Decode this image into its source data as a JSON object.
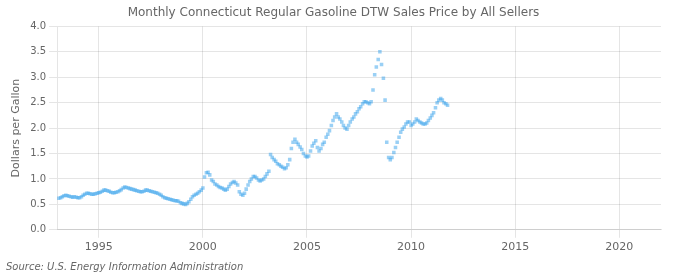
{
  "chart_data": {
    "type": "scatter",
    "title": "Monthly Connecticut Regular Gasoline DTW Sales Price by All Sellers",
    "ylabel": "Dollars per Gallon",
    "annotation": "Source: U.S. Energy Information Administration",
    "marker": "square",
    "grid": true,
    "xlim": [
      1993.0,
      2022.0
    ],
    "xticks": [
      1995,
      2000,
      2005,
      2010,
      2015,
      2020
    ],
    "ylim": [
      0.0,
      4.0
    ],
    "yticks": [
      {
        "value": 0,
        "label": "0.0"
      },
      0.5,
      {
        "value": 1,
        "label": "1.0"
      },
      1.5,
      {
        "value": 2,
        "label": "2.0"
      },
      2.5,
      {
        "value": 3,
        "label": "3.0"
      },
      3.5,
      {
        "value": 4,
        "label": "4.0"
      }
    ],
    "x": [
      1993.08,
      1993.17,
      1993.25,
      1993.33,
      1993.42,
      1993.5,
      1993.58,
      1993.67,
      1993.75,
      1993.83,
      1993.92,
      1994.0,
      1994.08,
      1994.17,
      1994.25,
      1994.33,
      1994.42,
      1994.5,
      1994.58,
      1994.67,
      1994.75,
      1994.83,
      1994.92,
      1995.0,
      1995.08,
      1995.17,
      1995.25,
      1995.33,
      1995.42,
      1995.5,
      1995.58,
      1995.67,
      1995.75,
      1995.83,
      1995.92,
      1996.0,
      1996.08,
      1996.17,
      1996.25,
      1996.33,
      1996.42,
      1996.5,
      1996.58,
      1996.67,
      1996.75,
      1996.83,
      1996.92,
      1997.0,
      1997.08,
      1997.17,
      1997.25,
      1997.33,
      1997.42,
      1997.5,
      1997.58,
      1997.67,
      1997.75,
      1997.83,
      1997.92,
      1998.0,
      1998.08,
      1998.17,
      1998.25,
      1998.33,
      1998.42,
      1998.5,
      1998.58,
      1998.67,
      1998.75,
      1998.83,
      1998.92,
      1999.0,
      1999.08,
      1999.17,
      1999.25,
      1999.33,
      1999.42,
      1999.5,
      1999.58,
      1999.67,
      1999.75,
      1999.83,
      1999.92,
      2000.0,
      2000.08,
      2000.17,
      2000.25,
      2000.33,
      2000.42,
      2000.5,
      2000.58,
      2000.67,
      2000.75,
      2000.83,
      2000.92,
      2001.0,
      2001.08,
      2001.17,
      2001.25,
      2001.33,
      2001.42,
      2001.5,
      2001.58,
      2001.67,
      2001.75,
      2001.83,
      2001.92,
      2002.0,
      2002.08,
      2002.17,
      2002.25,
      2002.33,
      2002.42,
      2002.5,
      2002.58,
      2002.67,
      2002.75,
      2002.83,
      2002.92,
      2003.0,
      2003.08,
      2003.17,
      2003.25,
      2003.33,
      2003.42,
      2003.5,
      2003.58,
      2003.67,
      2003.75,
      2003.83,
      2003.92,
      2004.0,
      2004.08,
      2004.17,
      2004.25,
      2004.33,
      2004.42,
      2004.5,
      2004.58,
      2004.67,
      2004.75,
      2004.83,
      2004.92,
      2005.0,
      2005.08,
      2005.17,
      2005.25,
      2005.33,
      2005.42,
      2005.5,
      2005.58,
      2005.67,
      2005.75,
      2005.83,
      2005.92,
      2006.0,
      2006.08,
      2006.17,
      2006.25,
      2006.33,
      2006.42,
      2006.5,
      2006.58,
      2006.67,
      2006.75,
      2006.83,
      2006.92,
      2007.0,
      2007.08,
      2007.17,
      2007.25,
      2007.33,
      2007.42,
      2007.5,
      2007.58,
      2007.67,
      2007.75,
      2007.83,
      2007.92,
      2008.0,
      2008.08,
      2008.17,
      2008.25,
      2008.33,
      2008.42,
      2008.5,
      2008.58,
      2008.67,
      2008.75,
      2008.83,
      2008.92,
      2009.0,
      2009.08,
      2009.17,
      2009.25,
      2009.33,
      2009.42,
      2009.5,
      2009.58,
      2009.67,
      2009.75,
      2009.83,
      2009.92,
      2010.0,
      2010.08,
      2010.17,
      2010.25,
      2010.33,
      2010.42,
      2010.5,
      2010.58,
      2010.67,
      2010.75,
      2010.83,
      2010.92,
      2011.0,
      2011.08,
      2011.17,
      2011.25,
      2011.33,
      2011.42,
      2011.5,
      2011.58,
      2011.67,
      2011.75
    ],
    "values": [
      0.62,
      0.63,
      0.65,
      0.67,
      0.68,
      0.67,
      0.66,
      0.65,
      0.64,
      0.65,
      0.64,
      0.63,
      0.63,
      0.65,
      0.68,
      0.7,
      0.72,
      0.72,
      0.71,
      0.7,
      0.7,
      0.71,
      0.72,
      0.73,
      0.74,
      0.76,
      0.78,
      0.78,
      0.77,
      0.76,
      0.74,
      0.73,
      0.73,
      0.74,
      0.75,
      0.77,
      0.79,
      0.82,
      0.84,
      0.83,
      0.82,
      0.81,
      0.8,
      0.79,
      0.78,
      0.77,
      0.76,
      0.75,
      0.75,
      0.76,
      0.78,
      0.78,
      0.77,
      0.76,
      0.75,
      0.74,
      0.73,
      0.72,
      0.7,
      0.68,
      0.65,
      0.63,
      0.62,
      0.61,
      0.6,
      0.59,
      0.58,
      0.57,
      0.57,
      0.56,
      0.53,
      0.52,
      0.51,
      0.5,
      0.52,
      0.55,
      0.6,
      0.65,
      0.68,
      0.7,
      0.72,
      0.75,
      0.78,
      0.82,
      1.04,
      1.12,
      1.13,
      1.08,
      0.98,
      0.95,
      0.9,
      0.88,
      0.85,
      0.83,
      0.82,
      0.8,
      0.78,
      0.8,
      0.85,
      0.9,
      0.93,
      0.95,
      0.92,
      0.88,
      0.75,
      0.7,
      0.68,
      0.72,
      0.8,
      0.88,
      0.95,
      1.0,
      1.05,
      1.05,
      1.02,
      0.98,
      0.96,
      0.98,
      1.0,
      1.05,
      1.1,
      1.15,
      1.48,
      1.42,
      1.38,
      1.35,
      1.3,
      1.28,
      1.25,
      1.23,
      1.2,
      1.22,
      1.28,
      1.38,
      1.6,
      1.72,
      1.78,
      1.72,
      1.68,
      1.63,
      1.58,
      1.5,
      1.45,
      1.43,
      1.45,
      1.55,
      1.65,
      1.7,
      1.75,
      1.62,
      1.55,
      1.6,
      1.68,
      1.72,
      1.82,
      1.88,
      1.95,
      2.05,
      2.15,
      2.22,
      2.28,
      2.22,
      2.18,
      2.12,
      2.05,
      2.0,
      1.98,
      2.05,
      2.12,
      2.18,
      2.22,
      2.28,
      2.32,
      2.38,
      2.42,
      2.48,
      2.52,
      2.52,
      2.5,
      2.48,
      2.52,
      2.75,
      3.05,
      3.2,
      3.35,
      3.5,
      3.25,
      2.98,
      2.55,
      1.72,
      1.42,
      1.38,
      1.42,
      1.52,
      1.62,
      1.72,
      1.82,
      1.92,
      1.98,
      2.02,
      2.08,
      2.12,
      2.12,
      2.05,
      2.08,
      2.12,
      2.18,
      2.15,
      2.12,
      2.1,
      2.08,
      2.08,
      2.1,
      2.15,
      2.2,
      2.25,
      2.3,
      2.4,
      2.5,
      2.55,
      2.58,
      2.55,
      2.5,
      2.48,
      2.45
    ]
  }
}
